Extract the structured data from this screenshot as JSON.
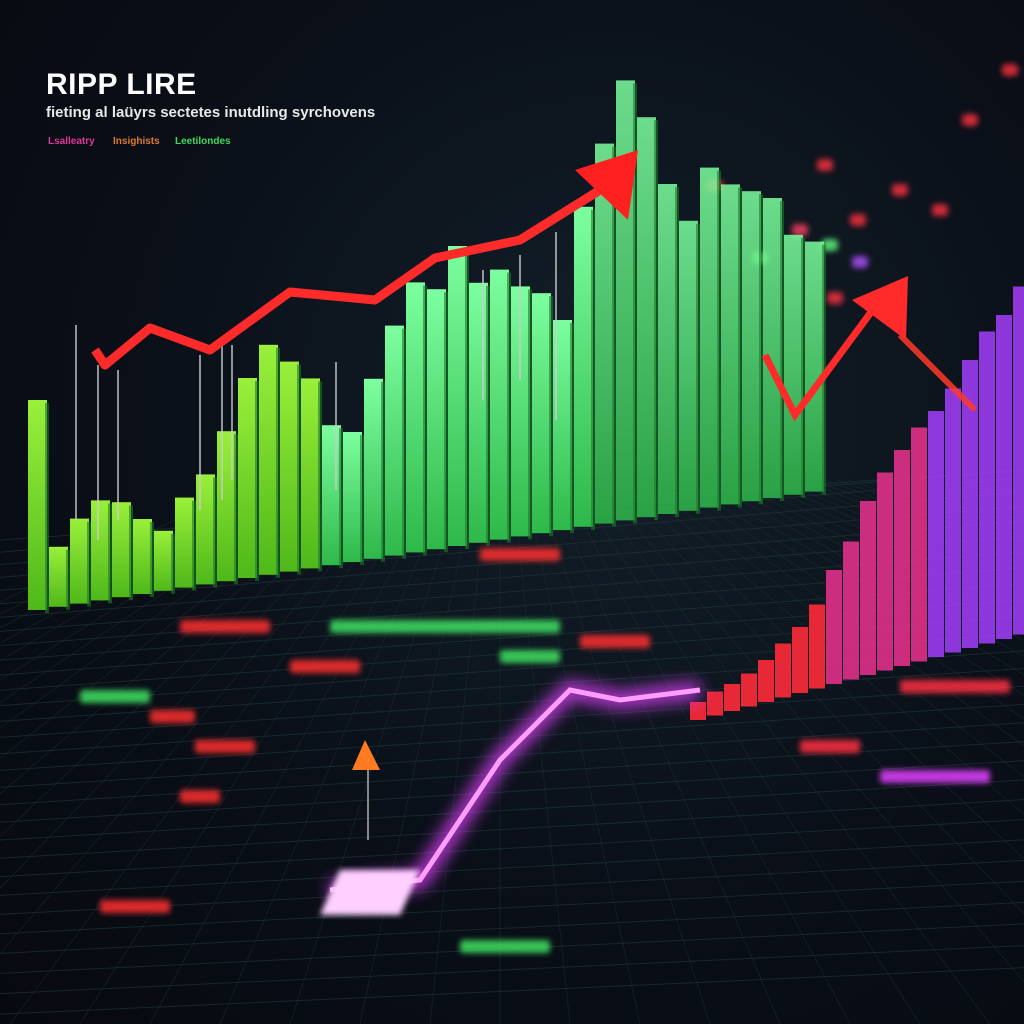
{
  "header": {
    "title": "RIPP LIRE",
    "subtitle": "fieting al laüyrs sectetes inutdling syrchovens"
  },
  "legend": [
    {
      "label": "Lsalleatry",
      "color": "#e0359a"
    },
    {
      "label": "Insighists",
      "color": "#e07a2a"
    },
    {
      "label": "Leetilondes",
      "color": "#3fd860"
    }
  ],
  "colors": {
    "background": "#0a0f18",
    "bars_green": "#4de86a",
    "bars_lime": "#7fe030",
    "trend_red": "#ff2a2a",
    "bars_purple": "#9b3cf0",
    "glow_magenta": "#e040ff"
  },
  "icons": [
    "trend-up-arrow-icon",
    "trend-up-arrow-icon"
  ]
}
